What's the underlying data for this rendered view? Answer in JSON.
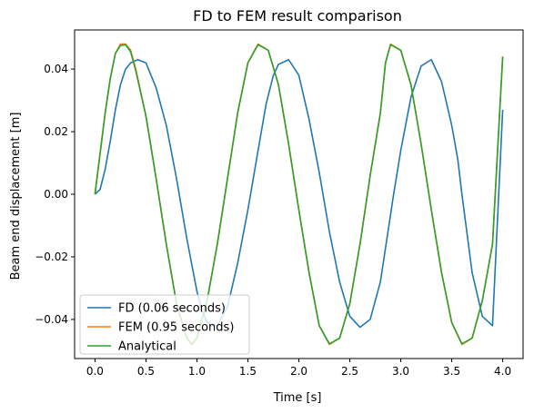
{
  "chart_data": {
    "type": "line",
    "title": "FD to FEM result comparison",
    "xlabel": "Time [s]",
    "ylabel": "Beam end displacement [m]",
    "xlim": [
      -0.2,
      4.2
    ],
    "ylim": [
      -0.0525,
      0.0525
    ],
    "x_ticks": [
      0.0,
      0.5,
      1.0,
      1.5,
      2.0,
      2.5,
      3.0,
      3.5,
      4.0
    ],
    "x_tick_labels": [
      "0.0",
      "0.5",
      "1.0",
      "1.5",
      "2.0",
      "2.5",
      "3.0",
      "3.5",
      "4.0"
    ],
    "y_ticks": [
      -0.04,
      -0.02,
      0.0,
      0.02,
      0.04
    ],
    "y_tick_labels": [
      "−0.04",
      "−0.02",
      "0.00",
      "0.02",
      "0.04"
    ],
    "grid": false,
    "legend_position": "lower-left",
    "series": [
      {
        "name": "FD (0.06 seconds)",
        "color": "#1f77b4",
        "x": [
          0.0,
          0.05,
          0.1,
          0.15,
          0.2,
          0.25,
          0.3,
          0.35,
          0.42,
          0.5,
          0.6,
          0.7,
          0.8,
          0.9,
          1.0,
          1.05,
          1.1,
          1.2,
          1.3,
          1.4,
          1.5,
          1.6,
          1.68,
          1.75,
          1.8,
          1.9,
          2.0,
          2.1,
          2.2,
          2.3,
          2.4,
          2.5,
          2.6,
          2.7,
          2.8,
          2.93,
          3.0,
          3.1,
          3.2,
          3.3,
          3.4,
          3.5,
          3.56,
          3.6,
          3.7,
          3.8,
          3.9,
          4.0
        ],
        "y": [
          0.0,
          0.0015,
          0.008,
          0.017,
          0.027,
          0.035,
          0.04,
          0.042,
          0.043,
          0.042,
          0.034,
          0.022,
          0.005,
          -0.014,
          -0.031,
          -0.037,
          -0.041,
          -0.042,
          -0.036,
          -0.022,
          -0.005,
          0.014,
          0.029,
          0.038,
          0.0415,
          0.043,
          0.038,
          0.024,
          0.007,
          -0.012,
          -0.028,
          -0.039,
          -0.0425,
          -0.04,
          -0.028,
          0.0,
          0.014,
          0.031,
          0.041,
          0.043,
          0.036,
          0.022,
          0.011,
          0.0,
          -0.025,
          -0.039,
          -0.042,
          0.027
        ]
      },
      {
        "name": "FEM (0.95 seconds)",
        "color": "#ff7f0e",
        "x": [
          0.0,
          0.05,
          0.1,
          0.15,
          0.2,
          0.25,
          0.3,
          0.35,
          0.4,
          0.5,
          0.6,
          0.7,
          0.8,
          0.9,
          0.95,
          1.0,
          1.1,
          1.2,
          1.3,
          1.4,
          1.5,
          1.6,
          1.7,
          1.8,
          1.9,
          2.0,
          2.1,
          2.2,
          2.3,
          2.4,
          2.5,
          2.6,
          2.7,
          2.8,
          2.85,
          2.9,
          3.0,
          3.1,
          3.2,
          3.3,
          3.4,
          3.5,
          3.6,
          3.7,
          3.8,
          3.9,
          4.0
        ],
        "y": [
          0.0,
          0.013,
          0.026,
          0.037,
          0.045,
          0.048,
          0.048,
          0.046,
          0.04,
          0.025,
          0.005,
          -0.016,
          -0.035,
          -0.046,
          -0.048,
          -0.046,
          -0.034,
          -0.016,
          0.005,
          0.026,
          0.042,
          0.048,
          0.046,
          0.035,
          0.016,
          -0.005,
          -0.025,
          -0.042,
          -0.048,
          -0.046,
          -0.035,
          -0.016,
          0.006,
          0.026,
          0.042,
          0.048,
          0.046,
          0.035,
          0.016,
          -0.005,
          -0.025,
          -0.041,
          -0.048,
          -0.046,
          -0.034,
          -0.016,
          0.044
        ]
      },
      {
        "name": "Analytical",
        "color": "#2ca02c",
        "x": [
          0.0,
          0.05,
          0.1,
          0.15,
          0.2,
          0.25,
          0.3,
          0.35,
          0.4,
          0.5,
          0.6,
          0.7,
          0.8,
          0.9,
          0.95,
          1.0,
          1.1,
          1.2,
          1.3,
          1.4,
          1.5,
          1.6,
          1.7,
          1.8,
          1.9,
          2.0,
          2.1,
          2.2,
          2.3,
          2.4,
          2.5,
          2.6,
          2.7,
          2.8,
          2.85,
          2.9,
          3.0,
          3.1,
          3.2,
          3.3,
          3.4,
          3.5,
          3.6,
          3.7,
          3.8,
          3.9,
          4.0
        ],
        "y": [
          0.0,
          0.013,
          0.026,
          0.037,
          0.045,
          0.0475,
          0.0478,
          0.0455,
          0.0395,
          0.025,
          0.005,
          -0.016,
          -0.035,
          -0.046,
          -0.0478,
          -0.046,
          -0.034,
          -0.016,
          0.005,
          0.026,
          0.042,
          0.0478,
          0.046,
          0.035,
          0.016,
          -0.005,
          -0.025,
          -0.042,
          -0.0478,
          -0.046,
          -0.035,
          -0.016,
          0.006,
          0.026,
          0.042,
          0.0478,
          0.046,
          0.035,
          0.016,
          -0.005,
          -0.025,
          -0.041,
          -0.0478,
          -0.046,
          -0.034,
          -0.016,
          0.044
        ]
      }
    ]
  }
}
